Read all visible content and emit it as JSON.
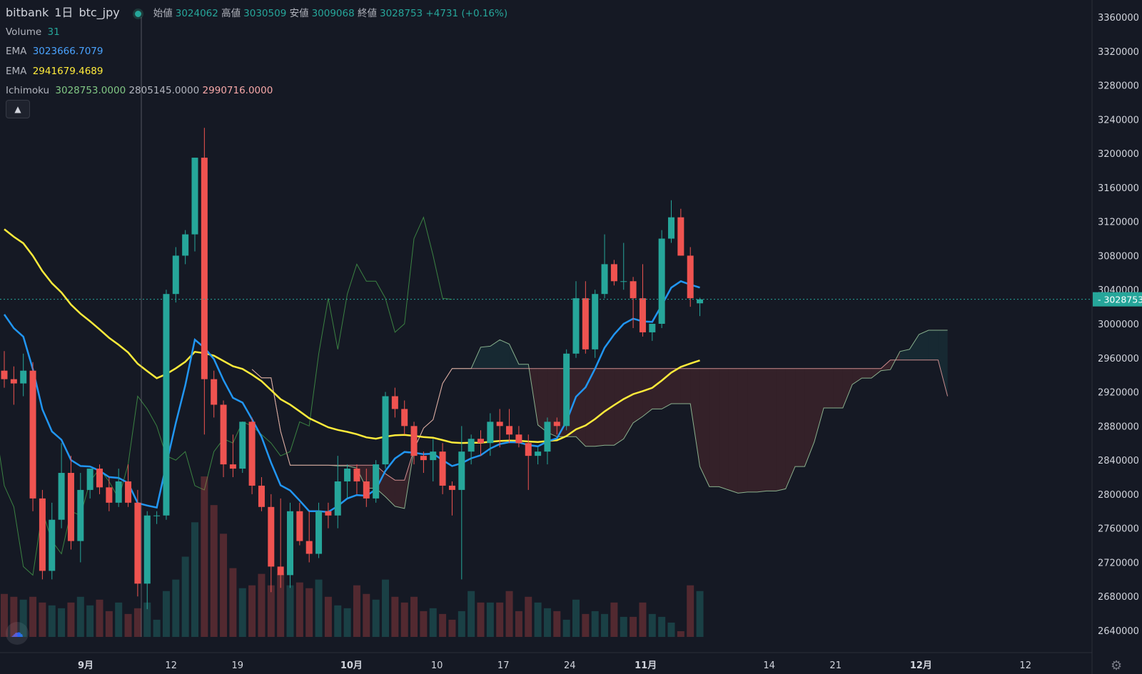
{
  "header": {
    "exchange": "bitbank",
    "interval": "1日",
    "symbol": "btc_jpy",
    "ohlc": [
      {
        "label": "始値",
        "value": "3024062"
      },
      {
        "label": "高値",
        "value": "3030509"
      },
      {
        "label": "安値",
        "value": "3009068"
      },
      {
        "label": "終値",
        "value": "3028753"
      }
    ],
    "change": "+4731 (+0.16%)"
  },
  "indicators": [
    {
      "name": "Volume",
      "values": [
        "31"
      ],
      "colors": [
        "#26a69a"
      ]
    },
    {
      "name": "EMA",
      "values": [
        "3023666.7079"
      ],
      "colors": [
        "#4aa3ff"
      ]
    },
    {
      "name": "EMA",
      "values": [
        "2941679.4689"
      ],
      "colors": [
        "#ffeb3b"
      ]
    },
    {
      "name": "Ichimoku",
      "values": [
        "3028753.0000",
        "2805145.0000",
        "2990716.0000"
      ],
      "colors": [
        "#81c784",
        "#b2b5be",
        "#f7a8a8"
      ]
    }
  ],
  "colors": {
    "up": "#26a69a",
    "down": "#ef5350",
    "ema_short": "#2196f3",
    "ema_long": "#ffeb3b",
    "callout": "#0e6b7a"
  },
  "icons": {
    "collapse": "chevron-up-icon",
    "logo": "tradingview-logo-icon",
    "settings": "gear-icon"
  },
  "chart_data": {
    "type": "candlestick",
    "title": "",
    "y_ticks": [
      3360000,
      3320000,
      3280000,
      3240000,
      3200000,
      3160000,
      3120000,
      3080000,
      3040000,
      3000000,
      2960000,
      2920000,
      2880000,
      2840000,
      2800000,
      2760000,
      2720000,
      2680000,
      2640000
    ],
    "ylim": [
      2610000,
      3380000
    ],
    "x_ticks": [
      {
        "label": "9月",
        "day": 3,
        "bold": true
      },
      {
        "label": "12",
        "day": 12
      },
      {
        "label": "19",
        "day": 19
      },
      {
        "label": "10月",
        "day": 31,
        "bold": true
      },
      {
        "label": "10",
        "day": 40
      },
      {
        "label": "17",
        "day": 47
      },
      {
        "label": "24",
        "day": 54
      },
      {
        "label": "11月",
        "day": 62,
        "bold": true
      },
      {
        "label": "14",
        "day": 75
      },
      {
        "label": "21",
        "day": 82
      },
      {
        "label": "12月",
        "day": 91,
        "bold": true
      },
      {
        "label": "12",
        "day": 102
      }
    ],
    "xlim": [
      -6,
      105
    ],
    "last_price": {
      "label": "3028753",
      "value": 3028753
    },
    "candles": [
      [
        2945000,
        2968000,
        2925000,
        2935000
      ],
      [
        2935000,
        2950000,
        2905000,
        2930000
      ],
      [
        2930000,
        2965000,
        2915000,
        2945000
      ],
      [
        2945000,
        2955000,
        2780000,
        2795000
      ],
      [
        2795000,
        2805000,
        2700000,
        2710000
      ],
      [
        2710000,
        2790000,
        2700000,
        2770000
      ],
      [
        2770000,
        2860000,
        2760000,
        2825000
      ],
      [
        2825000,
        2845000,
        2735000,
        2745000
      ],
      [
        2745000,
        2825000,
        2720000,
        2805000
      ],
      [
        2805000,
        2830000,
        2795000,
        2830000
      ],
      [
        2830000,
        2835000,
        2800000,
        2808000
      ],
      [
        2808000,
        2820000,
        2780000,
        2790000
      ],
      [
        2790000,
        2830000,
        2785000,
        2815000
      ],
      [
        2815000,
        2835000,
        2785000,
        2790000
      ],
      [
        2790000,
        2805000,
        2680000,
        2695000
      ],
      [
        2695000,
        2780000,
        2665000,
        2775000
      ],
      [
        2775000,
        2780000,
        2765000,
        2775000
      ],
      [
        2775000,
        3040000,
        2770000,
        3035000
      ],
      [
        3035000,
        3090000,
        3025000,
        3080000
      ],
      [
        3080000,
        3110000,
        3070000,
        3105000
      ],
      [
        3105000,
        3195000,
        3085000,
        3195000
      ],
      [
        3195000,
        3230000,
        2870000,
        2935000
      ],
      [
        2935000,
        2945000,
        2890000,
        2905000
      ],
      [
        2905000,
        2910000,
        2820000,
        2835000
      ],
      [
        2835000,
        2870000,
        2820000,
        2830000
      ],
      [
        2830000,
        2885000,
        2825000,
        2885000
      ],
      [
        2885000,
        2890000,
        2800000,
        2810000
      ],
      [
        2810000,
        2820000,
        2780000,
        2785000
      ],
      [
        2785000,
        2800000,
        2685000,
        2715000
      ],
      [
        2715000,
        2795000,
        2690000,
        2705000
      ],
      [
        2705000,
        2790000,
        2690000,
        2780000
      ],
      [
        2780000,
        2790000,
        2740000,
        2745000
      ],
      [
        2745000,
        2780000,
        2720000,
        2730000
      ],
      [
        2730000,
        2790000,
        2725000,
        2780000
      ],
      [
        2780000,
        2790000,
        2760000,
        2775000
      ],
      [
        2775000,
        2845000,
        2760000,
        2815000
      ],
      [
        2815000,
        2835000,
        2795000,
        2830000
      ],
      [
        2830000,
        2835000,
        2800000,
        2815000
      ],
      [
        2815000,
        2830000,
        2785000,
        2795000
      ],
      [
        2795000,
        2840000,
        2790000,
        2835000
      ],
      [
        2835000,
        2920000,
        2830000,
        2915000
      ],
      [
        2915000,
        2925000,
        2890000,
        2900000
      ],
      [
        2900000,
        2910000,
        2870000,
        2880000
      ],
      [
        2880000,
        2885000,
        2835000,
        2845000
      ],
      [
        2845000,
        2850000,
        2825000,
        2840000
      ],
      [
        2840000,
        2865000,
        2815000,
        2850000
      ],
      [
        2850000,
        2860000,
        2800000,
        2810000
      ],
      [
        2810000,
        2815000,
        2775000,
        2805000
      ],
      [
        2805000,
        2880000,
        2700000,
        2850000
      ],
      [
        2850000,
        2870000,
        2835000,
        2865000
      ],
      [
        2865000,
        2875000,
        2845000,
        2860000
      ],
      [
        2860000,
        2895000,
        2845000,
        2885000
      ],
      [
        2885000,
        2900000,
        2855000,
        2880000
      ],
      [
        2880000,
        2900000,
        2860000,
        2870000
      ],
      [
        2870000,
        2880000,
        2855000,
        2860000
      ],
      [
        2860000,
        2870000,
        2805000,
        2845000
      ],
      [
        2845000,
        2855000,
        2835000,
        2850000
      ],
      [
        2850000,
        2890000,
        2835000,
        2885000
      ],
      [
        2885000,
        2890000,
        2870000,
        2880000
      ],
      [
        2880000,
        2970000,
        2875000,
        2965000
      ],
      [
        2965000,
        3050000,
        2960000,
        3030000
      ],
      [
        3030000,
        3050000,
        2965000,
        2970000
      ],
      [
        2970000,
        3040000,
        2960000,
        3035000
      ],
      [
        3035000,
        3105000,
        3030000,
        3070000
      ],
      [
        3070000,
        3075000,
        3045000,
        3050000
      ],
      [
        3050000,
        3095000,
        3040000,
        3050000
      ],
      [
        3050000,
        3055000,
        2995000,
        3030000
      ],
      [
        3030000,
        3070000,
        2985000,
        2990000
      ],
      [
        2990000,
        3000000,
        2980000,
        3000000
      ],
      [
        3000000,
        3110000,
        2995000,
        3100000
      ],
      [
        3100000,
        3145000,
        3095000,
        3125000
      ],
      [
        3125000,
        3135000,
        3080000,
        3080000
      ],
      [
        3080000,
        3090000,
        3020000,
        3030000
      ],
      [
        3024062,
        3030509,
        3009068,
        3028753
      ]
    ],
    "volume": [
      75,
      70,
      65,
      70,
      60,
      55,
      50,
      60,
      70,
      55,
      65,
      45,
      60,
      40,
      50,
      60,
      30,
      80,
      100,
      140,
      200,
      280,
      230,
      180,
      120,
      85,
      90,
      110,
      90,
      110,
      90,
      95,
      85,
      100,
      70,
      55,
      50,
      90,
      75,
      65,
      100,
      70,
      60,
      70,
      45,
      50,
      40,
      30,
      45,
      80,
      60,
      60,
      60,
      80,
      45,
      70,
      60,
      50,
      45,
      30,
      65,
      40,
      45,
      40,
      60,
      35,
      35,
      60,
      40,
      35,
      25,
      10,
      90,
      80
    ]
  }
}
